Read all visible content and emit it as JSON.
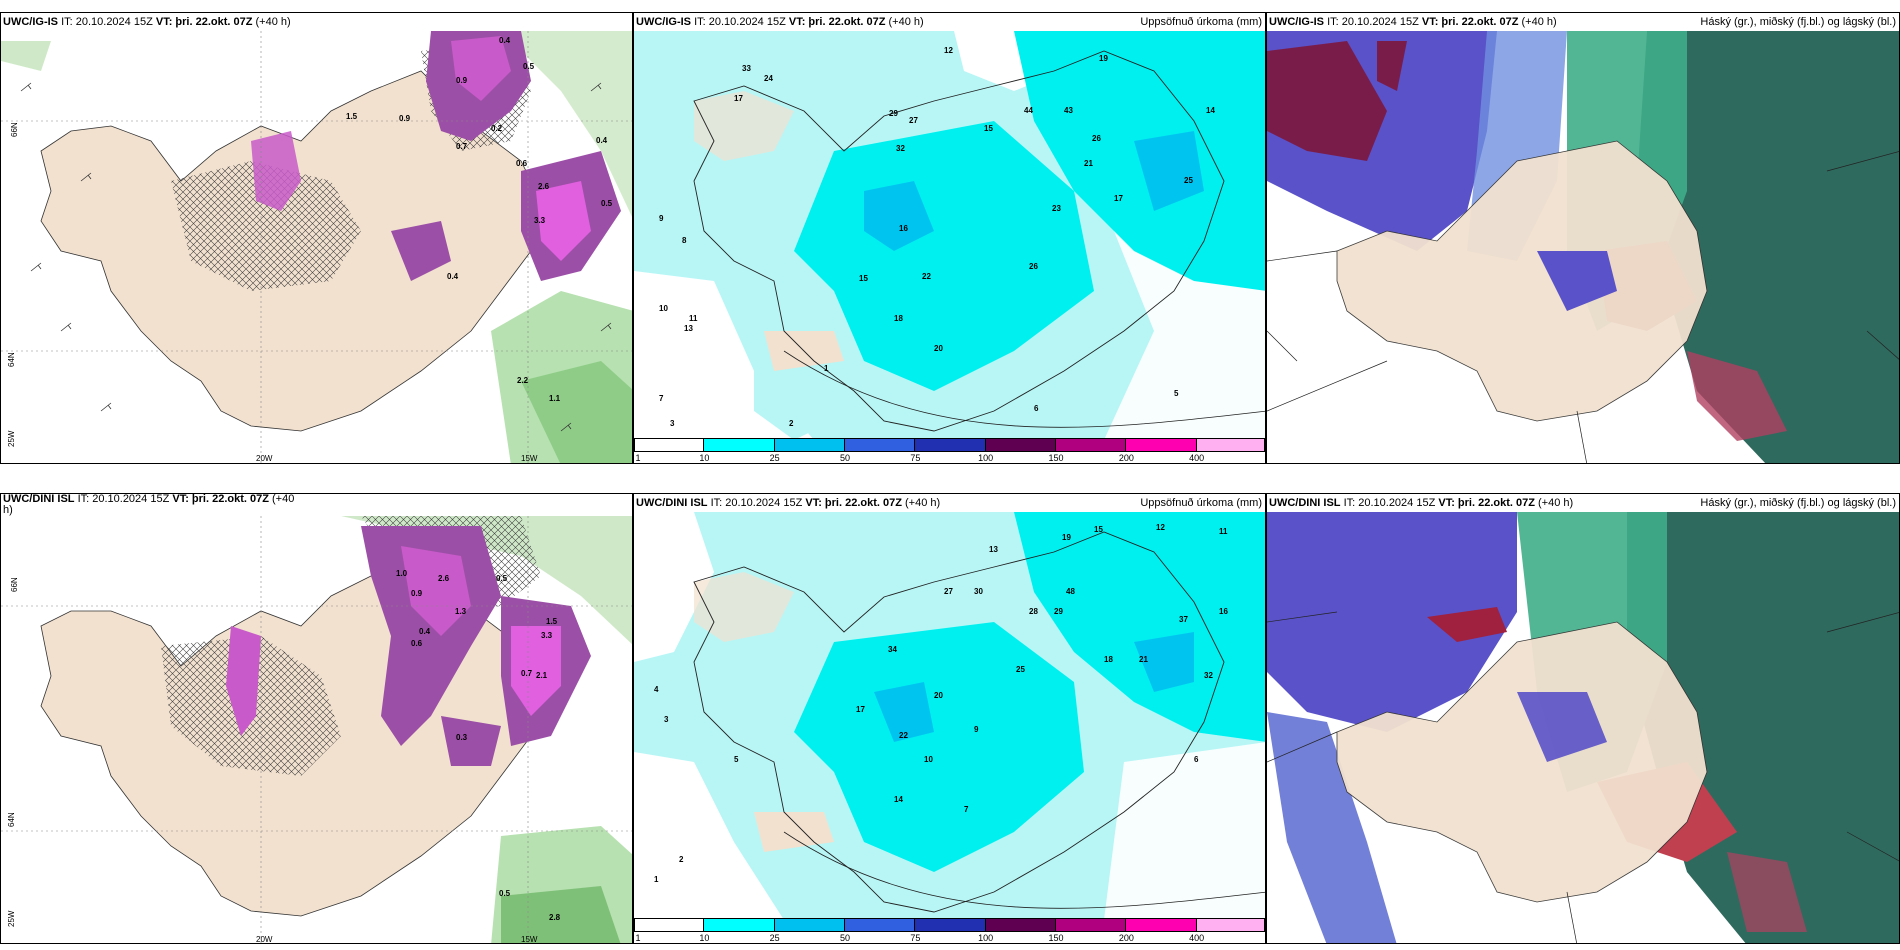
{
  "panels": [
    {
      "model": "UWC/IG-IS",
      "init": "IT: 20.10.2024 15Z",
      "valid": "VT: þri. 22.okt. 07Z",
      "lead": "(+40 h)",
      "right": ""
    },
    {
      "model": "UWC/IG-IS",
      "init": "IT: 20.10.2024 15Z",
      "valid": "VT: þri. 22.okt. 07Z",
      "lead": "(+40 h)",
      "right": "Uppsöfnuð úrkoma (mm)"
    },
    {
      "model": "UWC/IG-IS",
      "init": "IT: 20.10.2024 15Z",
      "valid": "VT: þri. 22.okt. 07Z",
      "lead": "(+40 h)",
      "right": "Háský (gr.), miðský (fj.bl.) og lágský (bl.)"
    },
    {
      "model": "UWC/DINI ISL",
      "init": "IT: 20.10.2024 15Z",
      "valid": "VT: þri. 22.okt. 07Z",
      "lead": "(+40",
      "right": "",
      "wrap": "h)"
    },
    {
      "model": "UWC/DINI ISL",
      "init": "IT: 20.10.2024 15Z",
      "valid": "VT: þri. 22.okt. 07Z",
      "lead": "(+40 h)",
      "right": "Uppsöfnuð úrkoma (mm)"
    },
    {
      "model": "UWC/DINI ISL",
      "init": "IT: 20.10.2024 15Z",
      "valid": "VT: þri. 22.okt. 07Z",
      "lead": "(+40 h)",
      "right": "Háský (gr.), miðský (fj.bl.) og lágský (bl.)"
    }
  ],
  "axes": {
    "lon": [
      "20W",
      "15W"
    ],
    "lat": [
      "66N",
      "64N",
      "25W"
    ]
  },
  "colorbar": {
    "ticks": [
      "1",
      "10",
      "25",
      "50",
      "75",
      "100",
      "150",
      "200",
      "400"
    ],
    "colors": [
      "#ffffff",
      "#00ffff",
      "#00c0f0",
      "#3060e0",
      "#2030b0",
      "#600050",
      "#b00080",
      "#ff00b0",
      "#ffb0f0"
    ]
  },
  "values_top_left": [
    "0.4",
    "0.5",
    "0.9",
    "0.2",
    "0.9",
    "1.5",
    "0.6",
    "0.4",
    "2.6",
    "3.3",
    "0.5",
    "0.4",
    "2.2",
    "1.1",
    "0.7"
  ],
  "values_bottom_left": [
    "2.6",
    "1.3",
    "1.0",
    "0.9",
    "0.4",
    "0.6",
    "1.5",
    "3.3",
    "0.7",
    "2.1",
    "0.5",
    "0.3",
    "0.5",
    "2.8"
  ],
  "precip_top": [
    "33",
    "24",
    "17",
    "29",
    "27",
    "32",
    "44",
    "43",
    "19",
    "15",
    "14",
    "26",
    "21",
    "17",
    "23",
    "25",
    "16",
    "22",
    "15",
    "26",
    "20",
    "18",
    "12",
    "10",
    "9",
    "8",
    "11",
    "13",
    "7",
    "6",
    "5",
    "3",
    "2",
    "1"
  ],
  "precip_bottom": [
    "13",
    "19",
    "15",
    "12",
    "11",
    "27",
    "30",
    "34",
    "48",
    "28",
    "29",
    "16",
    "37",
    "21",
    "32",
    "18",
    "20",
    "22",
    "17",
    "25",
    "14",
    "10",
    "9",
    "7",
    "6",
    "5",
    "4",
    "3",
    "2",
    "1"
  ]
}
